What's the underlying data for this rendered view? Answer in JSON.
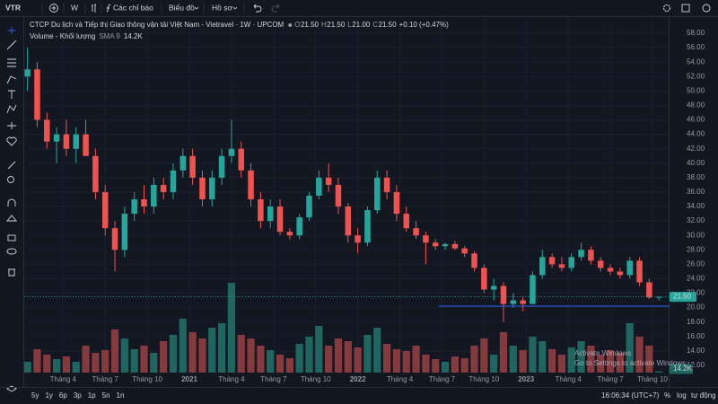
{
  "toolbar": {
    "symbol": "VTR",
    "interval": "W",
    "indicators": "Các chỉ báo",
    "chart": "Biểu đồ",
    "profile": "Hồ sơ"
  },
  "chart_data": {
    "type": "candlestick",
    "title": "CTCP Du lịch và Tiếp thị Giao thông vận tải Việt Nam - Vietravel · 1W · UPCOM",
    "legend": [
      {
        "key": "O",
        "value": "21.50"
      },
      {
        "key": "H",
        "value": "21.50"
      },
      {
        "key": "L",
        "value": "21.00"
      },
      {
        "key": "C",
        "value": "21.50"
      }
    ],
    "change": "+0.10 (+0.47%)",
    "volume_title": "Volume - Khối lượng",
    "volume_sma": "SMA 9",
    "volume_last_label": "14.2K",
    "up_color": "#26a69a",
    "down_color": "#ef5350",
    "volume_up_color": "#1f6660",
    "volume_down_color": "#853a3e",
    "log": false,
    "grid": true,
    "xlim": [
      1,
      200
    ],
    "ylim": [
      11,
      59
    ],
    "vlim": [
      0,
      1000
    ],
    "yticks": [
      {
        "value": 58,
        "label": "58.00"
      },
      {
        "value": 56,
        "label": "56.00"
      },
      {
        "value": 54,
        "label": "54.00"
      },
      {
        "value": 52,
        "label": "52.00"
      },
      {
        "value": 50,
        "label": "50.00"
      },
      {
        "value": 48,
        "label": "48.00"
      },
      {
        "value": 46,
        "label": "46.00"
      },
      {
        "value": 44,
        "label": "44.00"
      },
      {
        "value": 42,
        "label": "42.00"
      },
      {
        "value": 40,
        "label": "40.00"
      },
      {
        "value": 38,
        "label": "38.00"
      },
      {
        "value": 36,
        "label": "36.00"
      },
      {
        "value": 34,
        "label": "34.00"
      },
      {
        "value": 32,
        "label": "32.00"
      },
      {
        "value": 30,
        "label": "30.00"
      },
      {
        "value": 28,
        "label": "28.00"
      },
      {
        "value": 26,
        "label": "26.00"
      },
      {
        "value": 24,
        "label": "24.00"
      },
      {
        "value": 22,
        "label": "22.00"
      },
      {
        "value": 20,
        "label": "20.00"
      },
      {
        "value": 18,
        "label": "18.00"
      },
      {
        "value": 16,
        "label": "16.00"
      },
      {
        "value": 14,
        "label": "14.00"
      },
      {
        "value": 12,
        "label": "12.00"
      }
    ],
    "xticks": [
      {
        "value": 13,
        "label": "Tháng 4"
      },
      {
        "value": 26,
        "label": "Tháng 7"
      },
      {
        "value": 39,
        "label": "Tháng 10"
      },
      {
        "value": 52,
        "label": "2021"
      },
      {
        "value": 65,
        "label": "Tháng 4"
      },
      {
        "value": 78,
        "label": "Tháng 7"
      },
      {
        "value": 91,
        "label": "Tháng 10"
      },
      {
        "value": 104,
        "label": "2022"
      },
      {
        "value": 117,
        "label": "Tháng 4"
      },
      {
        "value": 130,
        "label": "Tháng 7"
      },
      {
        "value": 143,
        "label": "Tháng 10"
      },
      {
        "value": 156,
        "label": "2023"
      },
      {
        "value": 169,
        "label": "Tháng 4"
      },
      {
        "value": 182,
        "label": "Tháng 7"
      },
      {
        "value": 195,
        "label": "Tháng 10"
      }
    ],
    "x": [
      2,
      5,
      8,
      11,
      14,
      17,
      20,
      23,
      26,
      29,
      32,
      35,
      38,
      41,
      44,
      47,
      50,
      53,
      56,
      59,
      62,
      65,
      68,
      71,
      74,
      77,
      80,
      83,
      86,
      89,
      92,
      95,
      98,
      101,
      104,
      107,
      110,
      113,
      116,
      119,
      122,
      125,
      128,
      131,
      134,
      137,
      140,
      143,
      146,
      149,
      152,
      155,
      158,
      161,
      164,
      167,
      170,
      173,
      176,
      179,
      182,
      185,
      188,
      191,
      194,
      197
    ],
    "candles": [
      [
        52,
        56,
        50,
        53
      ],
      [
        53,
        54,
        45,
        46
      ],
      [
        46,
        47,
        42,
        43
      ],
      [
        43,
        45,
        40,
        44
      ],
      [
        44,
        46,
        41,
        42
      ],
      [
        42,
        45,
        40,
        44
      ],
      [
        44,
        46,
        41,
        41
      ],
      [
        41,
        42,
        35,
        36
      ],
      [
        36,
        37,
        30,
        31
      ],
      [
        31,
        32,
        25,
        28
      ],
      [
        28,
        34,
        27,
        33
      ],
      [
        33,
        36,
        32,
        35
      ],
      [
        35,
        37,
        33,
        34
      ],
      [
        34,
        38,
        33,
        37
      ],
      [
        37,
        38,
        35,
        36
      ],
      [
        36,
        40,
        35,
        39
      ],
      [
        39,
        42,
        38,
        41
      ],
      [
        41,
        42,
        37,
        38
      ],
      [
        38,
        39,
        34,
        35
      ],
      [
        35,
        39,
        34,
        38
      ],
      [
        38,
        42,
        37,
        41
      ],
      [
        41,
        46,
        40,
        42
      ],
      [
        42,
        43,
        38,
        39
      ],
      [
        39,
        40,
        34,
        35
      ],
      [
        35,
        36,
        31,
        32
      ],
      [
        32,
        35,
        31,
        34
      ],
      [
        34,
        35,
        30,
        30.5
      ],
      [
        30.5,
        31,
        29.5,
        30
      ],
      [
        30,
        33,
        29.5,
        32.5
      ],
      [
        32.5,
        36,
        32,
        35.5
      ],
      [
        35.5,
        39,
        35,
        38
      ],
      [
        38,
        40,
        36,
        37
      ],
      [
        37,
        38,
        33,
        34
      ],
      [
        34,
        34.5,
        29,
        30
      ],
      [
        30,
        31,
        27.5,
        29
      ],
      [
        29,
        34,
        28.5,
        33.5
      ],
      [
        33.5,
        39,
        33,
        38
      ],
      [
        38,
        39,
        35,
        36
      ],
      [
        36,
        37,
        32,
        33
      ],
      [
        33,
        34,
        30.5,
        31
      ],
      [
        31,
        32,
        29.5,
        30
      ],
      [
        30,
        30.5,
        26,
        29
      ],
      [
        29,
        29.5,
        28,
        28.5
      ],
      [
        28.5,
        29,
        28,
        28.8
      ],
      [
        28.8,
        29.2,
        28,
        28.2
      ],
      [
        28.2,
        28.5,
        27,
        27.5
      ],
      [
        27.5,
        27.8,
        25,
        25.5
      ],
      [
        25.5,
        26,
        22,
        22.5
      ],
      [
        22.5,
        24,
        21,
        23
      ],
      [
        23,
        23.5,
        18,
        20.5
      ],
      [
        20.5,
        22,
        20,
        21
      ],
      [
        21,
        21.5,
        19.5,
        20.5
      ],
      [
        20.5,
        25,
        20.5,
        24.5
      ],
      [
        24.5,
        28,
        24,
        27
      ],
      [
        27,
        27.5,
        25.5,
        26
      ],
      [
        26,
        27,
        25,
        25.5
      ],
      [
        25.5,
        27.5,
        25,
        27
      ],
      [
        27,
        29,
        26.5,
        28
      ],
      [
        28,
        28.5,
        26,
        26.5
      ],
      [
        26.5,
        27,
        25,
        25.5
      ],
      [
        25.5,
        26,
        24.5,
        25
      ],
      [
        25,
        25.5,
        24,
        24.5
      ],
      [
        24.5,
        27,
        24,
        26.5
      ],
      [
        26.5,
        27,
        23,
        23.5
      ],
      [
        23.5,
        24,
        21.2,
        21.4
      ],
      [
        21.5,
        21.5,
        21,
        21.5
      ]
    ],
    "volume": [
      120,
      260,
      200,
      150,
      180,
      120,
      300,
      220,
      250,
      480,
      380,
      260,
      300,
      220,
      350,
      420,
      600,
      450,
      380,
      500,
      550,
      1000,
      420,
      380,
      300,
      250,
      200,
      160,
      320,
      400,
      520,
      300,
      380,
      350,
      280,
      420,
      500,
      320,
      260,
      240,
      300,
      200,
      150,
      120,
      180,
      160,
      300,
      380,
      200,
      450,
      300,
      250,
      400,
      350,
      260,
      200,
      280,
      350,
      300,
      200,
      250,
      220,
      550,
      400,
      300,
      14.2
    ],
    "hline": {
      "value": 20.2,
      "from": 129,
      "color": "#2962ff"
    }
  },
  "bottom": {
    "ranges": [
      "5y",
      "1y",
      "6p",
      "3p",
      "1p",
      "5n",
      "1n"
    ],
    "clock": "16:06:34 (UTC+7)",
    "scale_buttons": [
      "%",
      "log",
      "tự động"
    ]
  },
  "watermark": {
    "title": "Activate Windows",
    "text": "Go to Settings to activate Windows."
  }
}
